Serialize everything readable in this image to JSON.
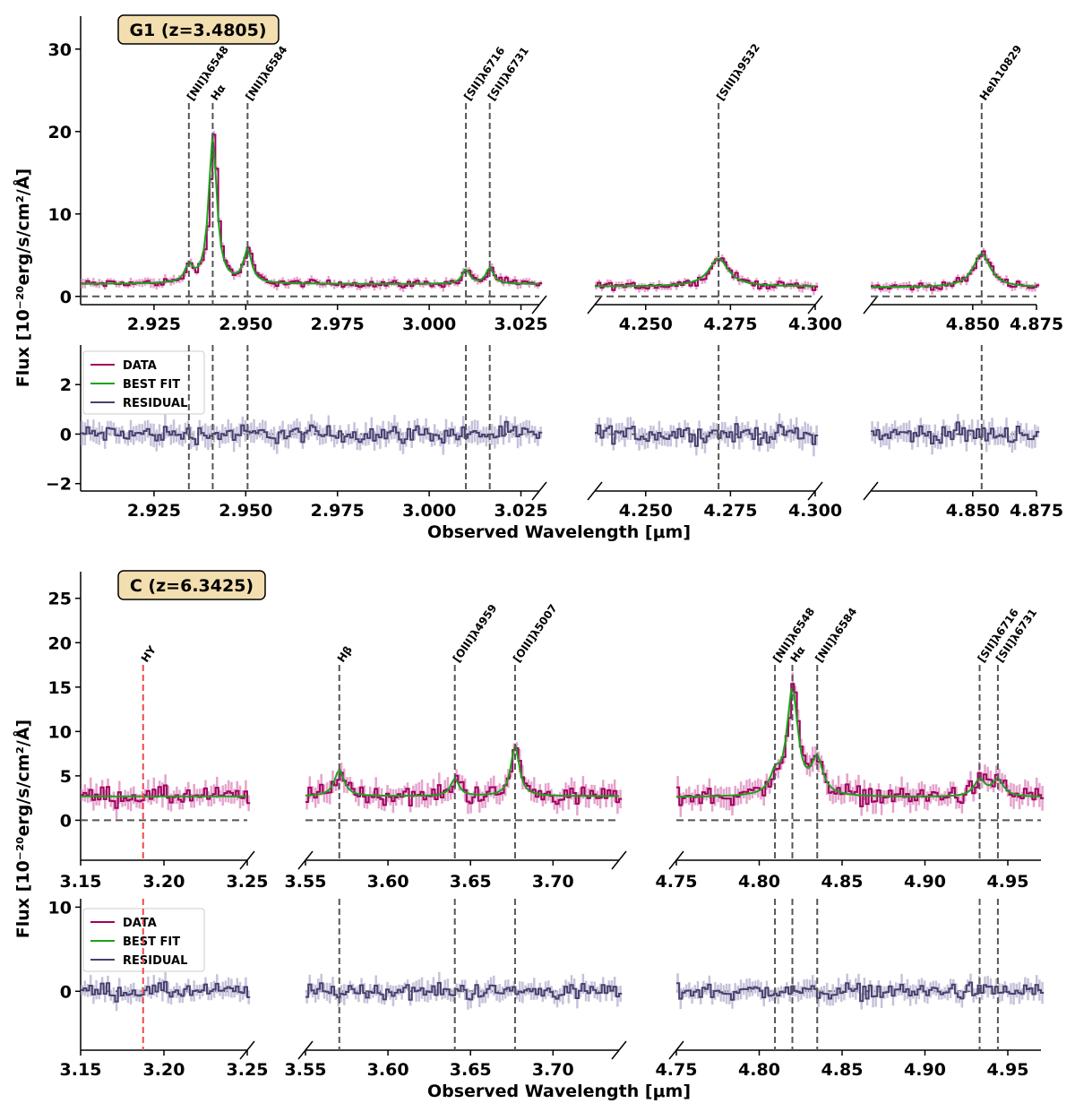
{
  "colors": {
    "data": "#a0005f",
    "data_err": "#e5a3cc",
    "fit": "#1aa31a",
    "residual": "#47406e",
    "residual_err": "#c6c2da",
    "marker": "#555555",
    "hy_marker": "#f04a4a",
    "badge_fill": "#f3deb0"
  },
  "chart_data": [
    {
      "type": "line",
      "title": "G1 (z=3.4805)",
      "ylabel": "Flux [10⁻²⁰erg/s/cm²/Å]",
      "xlabel": "Observed Wavelength [μm]",
      "legend": {
        "position": "top-left",
        "entries": [
          "DATA",
          "BEST FIT",
          "RESIDUAL"
        ]
      },
      "flux_ylim": [
        -1,
        34
      ],
      "flux_yticks": [
        "0",
        "10",
        "20",
        "30"
      ],
      "residual_ylim": [
        -2.3,
        3.6
      ],
      "residual_yticks": [
        "−2",
        "0",
        "2"
      ],
      "segments": [
        {
          "xlim": [
            2.905,
            3.03
          ],
          "xticks": [
            "2.925",
            "2.950",
            "2.975",
            "3.000",
            "3.025"
          ],
          "xtick_values": [
            2.925,
            2.95,
            2.975,
            3.0,
            3.025
          ],
          "continuum": 1.5,
          "lines": [
            {
              "wave": 2.9345,
              "label": "[NII]λ6548",
              "amp": 2.0,
              "width": 0.0012
            },
            {
              "wave": 2.941,
              "label": "Hα",
              "amp": 18.0,
              "width": 0.0013
            },
            {
              "wave": 2.9505,
              "label": "[NII]λ6584",
              "amp": 4.0,
              "width": 0.0013
            },
            {
              "wave": 3.01,
              "label": "[SII]λ6716",
              "amp": 1.8,
              "width": 0.0012
            },
            {
              "wave": 3.0165,
              "label": "[SII]λ6731",
              "amp": 2.0,
              "width": 0.0012
            }
          ]
        },
        {
          "xlim": [
            4.235,
            4.3
          ],
          "xticks": [
            "4.250",
            "4.275",
            "4.300"
          ],
          "xtick_values": [
            4.25,
            4.275,
            4.3
          ],
          "continuum": 1.2,
          "lines": [
            {
              "wave": 4.2715,
              "label": "[SIII]λ9532",
              "amp": 3.4,
              "width": 0.0035
            }
          ]
        },
        {
          "xlim": [
            4.81,
            4.875
          ],
          "xticks": [
            "4.850",
            "4.875"
          ],
          "xtick_values": [
            4.85,
            4.875
          ],
          "continuum": 1.1,
          "lines": [
            {
              "wave": 4.8535,
              "label": "HeIλ10829",
              "amp": 4.1,
              "width": 0.004
            }
          ]
        }
      ]
    },
    {
      "type": "line",
      "title": "C (z=6.3425)",
      "ylabel": "Flux [10⁻²⁰erg/s/cm²/Å]",
      "xlabel": "Observed Wavelength [μm]",
      "legend": {
        "position": "top-left",
        "entries": [
          "DATA",
          "BEST FIT",
          "RESIDUAL"
        ]
      },
      "flux_ylim": [
        -4.5,
        28
      ],
      "flux_yticks": [
        "0",
        "5",
        "10",
        "15",
        "20",
        "25"
      ],
      "residual_ylim": [
        -7,
        11
      ],
      "residual_yticks": [
        "0",
        "10"
      ],
      "segments": [
        {
          "xlim": [
            3.15,
            3.25
          ],
          "xticks": [
            "3.15",
            "3.20",
            "3.25"
          ],
          "xtick_values": [
            3.15,
            3.2,
            3.25
          ],
          "continuum": 2.7,
          "lines": [
            {
              "wave": 3.1875,
              "label": "HY",
              "amp": 0,
              "width": 0.001,
              "red": true
            }
          ]
        },
        {
          "xlim": [
            3.55,
            3.74
          ],
          "xticks": [
            "3.55",
            "3.60",
            "3.65",
            "3.70"
          ],
          "xtick_values": [
            3.55,
            3.6,
            3.65,
            3.7
          ],
          "continuum": 2.7,
          "lines": [
            {
              "wave": 3.5705,
              "label": "Hβ",
              "amp": 3.0,
              "width": 0.0035
            },
            {
              "wave": 3.6405,
              "label": "[OIII]λ4959",
              "amp": 2.0,
              "width": 0.003
            },
            {
              "wave": 3.677,
              "label": "[OIII]λ5007",
              "amp": 5.8,
              "width": 0.003
            }
          ]
        },
        {
          "xlim": [
            4.75,
            4.97
          ],
          "xticks": [
            "4.75",
            "4.80",
            "4.85",
            "4.90",
            "4.95"
          ],
          "xtick_values": [
            4.75,
            4.8,
            4.85,
            4.9,
            4.95
          ],
          "continuum": 2.6,
          "lines": [
            {
              "wave": 4.8095,
              "label": "[NII]λ6548",
              "amp": 2.0,
              "width": 0.0035
            },
            {
              "wave": 4.82,
              "label": "Hα",
              "amp": 12.0,
              "width": 0.004
            },
            {
              "wave": 4.835,
              "label": "[NII]λ6584",
              "amp": 4.0,
              "width": 0.004
            },
            {
              "wave": 4.933,
              "label": "[SII]λ6716",
              "amp": 1.9,
              "width": 0.004
            },
            {
              "wave": 4.944,
              "label": "[SII]λ6731",
              "amp": 1.9,
              "width": 0.004
            }
          ]
        }
      ]
    }
  ]
}
